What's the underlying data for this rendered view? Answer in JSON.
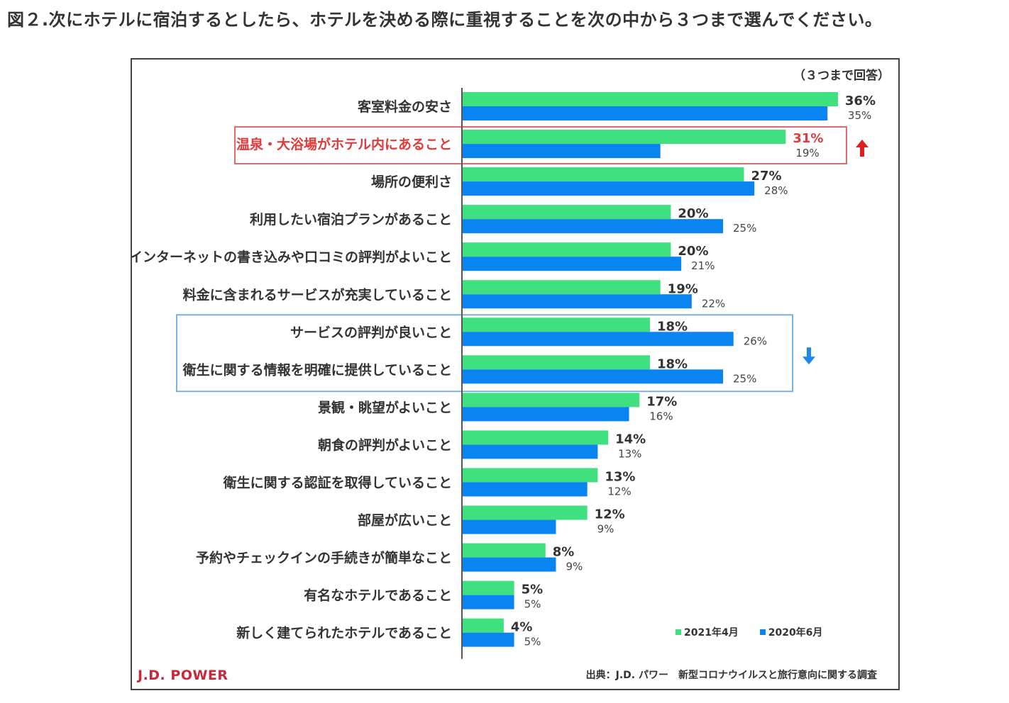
{
  "page_title": "図２.次にホテルに宿泊するとしたら、ホテルを決める際に重視することを次の中から３つまで選んでください。",
  "note": "（３つまで回答）",
  "logo_text": "J.D. POWER",
  "source": "出典：J.D. パワー　新型コロナウイルスと旅行意向に関する調査",
  "colors": {
    "series_2021": "#3ee07f",
    "series_2020": "#0a84f0",
    "highlight_up": "#e02020",
    "highlight_down": "#5aa0e0",
    "axis": "#555555"
  },
  "chart_data": {
    "type": "bar",
    "orientation": "horizontal",
    "title": "図２.次にホテルに宿泊するとしたら、ホテルを決める際に重視することを次の中から３つまで選んでください。",
    "subtitle": "（３つまで回答）",
    "xlabel": "",
    "ylabel": "",
    "xlim": [
      0,
      40
    ],
    "grid": false,
    "legend_position": "bottom-right",
    "categories": [
      "客室料金の安さ",
      "温泉・大浴場がホテル内にあること",
      "場所の便利さ",
      "利用したい宿泊プランがあること",
      "インターネットの書き込みや口コミの評判がよいこと",
      "料金に含まれるサービスが充実していること",
      "サービスの評判が良いこと",
      "衛生に関する情報を明確に提供していること",
      "景観・眺望がよいこと",
      "朝食の評判がよいこと",
      "衛生に関する認証を取得していること",
      "部屋が広いこと",
      "予約やチェックインの手続きが簡単なこと",
      "有名なホテルであること",
      "新しく建てられたホテルであること"
    ],
    "series": [
      {
        "name": "2021年4月",
        "values": [
          36,
          31,
          27,
          20,
          20,
          19,
          18,
          18,
          17,
          14,
          13,
          12,
          8,
          5,
          4
        ]
      },
      {
        "name": "2020年6月",
        "values": [
          35,
          19,
          28,
          25,
          21,
          22,
          26,
          25,
          16,
          13,
          12,
          9,
          9,
          5,
          5
        ]
      }
    ],
    "value_labels_2021": [
      "36%",
      "31%",
      "27%",
      "20%",
      "20%",
      "19%",
      "18%",
      "18%",
      "17%",
      "14%",
      "13%",
      "12%",
      "8%",
      "5%",
      "4%"
    ],
    "value_labels_2020": [
      "35%",
      "19%",
      "28%",
      "25%",
      "21%",
      "22%",
      "26%",
      "25%",
      "16%",
      "13%",
      "12%",
      "9%",
      "9%",
      "5%",
      "5%"
    ],
    "annotations": [
      {
        "type": "highlight-box",
        "categories": [
          "温泉・大浴場がホテル内にあること"
        ],
        "arrow": "up",
        "color": "red"
      },
      {
        "type": "highlight-box",
        "categories": [
          "サービスの評判が良いこと",
          "衛生に関する情報を明確に提供していること"
        ],
        "arrow": "down",
        "color": "blue"
      }
    ]
  }
}
